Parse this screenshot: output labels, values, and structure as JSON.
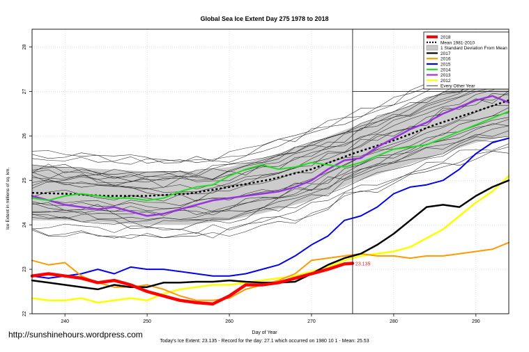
{
  "page": {
    "watermark": "http://sunshinehours.wordpress.com"
  },
  "chart_data": {
    "type": "line",
    "title": "Global Sea Ice Extent Day 275 1978 to 2018",
    "xlabel": "Day of Year",
    "ylabel": "Ice Extent in millions of sq. km.",
    "footer": "Today's Ice Extent: 23.135  - Record for the day: 27.1 which occurred on 1980 10 1  - Mean: 25.53",
    "xlim": [
      236,
      294
    ],
    "ylim": [
      22,
      28.4
    ],
    "x_ticks": [
      240,
      250,
      260,
      270,
      280,
      290
    ],
    "y_ticks": [
      22,
      23,
      24,
      25,
      26,
      27,
      28
    ],
    "grid": true,
    "legend_position": "top-right",
    "vertical_marker_x": 275,
    "reference_line_y": 27,
    "end_label": {
      "x": 275,
      "y": 23.135,
      "text": "23.135",
      "color": "#e8211d"
    },
    "legend": [
      {
        "label": "2018",
        "color": "#ff0000",
        "style": "thick"
      },
      {
        "label": "Mean 1981-2010",
        "color": "#000000",
        "style": "dotted"
      },
      {
        "label": "1 Standard Deviation From Mean",
        "color": "#c8c8c8",
        "style": "box"
      },
      {
        "label": "2017",
        "color": "#000000",
        "style": "solid"
      },
      {
        "label": "2016",
        "color": "#ff9a00",
        "style": "solid"
      },
      {
        "label": "2015",
        "color": "#0000ee",
        "style": "solid"
      },
      {
        "label": "2014",
        "color": "#22dd22",
        "style": "solid"
      },
      {
        "label": "2013",
        "color": "#9933dd",
        "style": "solid"
      },
      {
        "label": "2012",
        "color": "#ffff00",
        "style": "solid"
      },
      {
        "label": "Every Other Year",
        "color": "#000000",
        "style": "thin"
      }
    ],
    "band": {
      "x": [
        236,
        240,
        245,
        250,
        255,
        260,
        265,
        270,
        275,
        280,
        285,
        290,
        294
      ],
      "lower": [
        24.1,
        24.1,
        24.05,
        24.0,
        24.0,
        24.1,
        24.3,
        24.55,
        24.95,
        25.25,
        25.55,
        25.85,
        26.0
      ],
      "upper": [
        25.35,
        25.3,
        25.25,
        25.2,
        25.2,
        25.3,
        25.55,
        25.85,
        26.2,
        26.55,
        26.9,
        27.25,
        27.45
      ]
    },
    "mean": {
      "name": "Mean 1981-2010",
      "x": [
        236,
        240,
        245,
        250,
        255,
        260,
        265,
        270,
        275,
        280,
        285,
        290,
        294
      ],
      "y": [
        24.72,
        24.7,
        24.65,
        24.65,
        24.7,
        24.85,
        25.02,
        25.25,
        25.6,
        25.9,
        26.25,
        26.55,
        26.8
      ]
    },
    "series": [
      {
        "name": "2018",
        "color": "#ff0000",
        "width": 4.5,
        "x": [
          236,
          238,
          240,
          242,
          244,
          246,
          248,
          250,
          252,
          254,
          256,
          258,
          260,
          262,
          264,
          266,
          268,
          270,
          272,
          274,
          275
        ],
        "y": [
          22.85,
          22.9,
          22.85,
          22.8,
          22.7,
          22.75,
          22.65,
          22.5,
          22.4,
          22.3,
          22.25,
          22.22,
          22.4,
          22.65,
          22.65,
          22.7,
          22.8,
          22.9,
          23.0,
          23.12,
          23.135
        ]
      },
      {
        "name": "2017",
        "color": "#000000",
        "width": 2.5,
        "x": [
          236,
          238,
          240,
          242,
          244,
          246,
          248,
          250,
          252,
          254,
          256,
          258,
          260,
          262,
          264,
          266,
          268,
          270,
          272,
          274,
          276,
          278,
          280,
          282,
          284,
          286,
          288,
          290,
          292,
          294
        ],
        "y": [
          22.75,
          22.7,
          22.65,
          22.6,
          22.55,
          22.65,
          22.6,
          22.6,
          22.7,
          22.7,
          22.72,
          22.72,
          22.75,
          22.72,
          22.7,
          22.7,
          22.72,
          22.9,
          23.1,
          23.25,
          23.35,
          23.55,
          23.8,
          24.1,
          24.4,
          24.45,
          24.4,
          24.65,
          24.85,
          25.0
        ]
      },
      {
        "name": "2016",
        "color": "#ff9a00",
        "width": 2,
        "x": [
          236,
          238,
          240,
          242,
          244,
          246,
          248,
          250,
          252,
          254,
          256,
          258,
          260,
          262,
          264,
          266,
          268,
          270,
          272,
          274,
          276,
          278,
          280,
          282,
          284,
          286,
          288,
          290,
          292,
          294
        ],
        "y": [
          23.2,
          23.1,
          23.15,
          22.85,
          22.7,
          22.6,
          22.6,
          22.65,
          22.55,
          22.4,
          22.3,
          22.3,
          22.35,
          22.55,
          22.65,
          22.75,
          22.9,
          23.2,
          23.25,
          23.3,
          23.35,
          23.3,
          23.3,
          23.25,
          23.3,
          23.3,
          23.35,
          23.4,
          23.45,
          23.6
        ]
      },
      {
        "name": "2015",
        "color": "#0000ee",
        "width": 2,
        "x": [
          236,
          238,
          240,
          242,
          244,
          246,
          248,
          250,
          252,
          254,
          256,
          258,
          260,
          262,
          264,
          266,
          268,
          270,
          272,
          274,
          276,
          278,
          280,
          282,
          284,
          286,
          288,
          290,
          292,
          294
        ],
        "y": [
          22.85,
          22.8,
          22.85,
          22.9,
          23.0,
          22.9,
          23.05,
          23.0,
          23.0,
          22.95,
          22.9,
          22.85,
          22.85,
          22.9,
          23.0,
          23.1,
          23.3,
          23.55,
          23.75,
          24.1,
          24.2,
          24.4,
          24.7,
          24.85,
          24.9,
          25.0,
          25.25,
          25.6,
          25.85,
          25.95
        ]
      },
      {
        "name": "2014",
        "color": "#22dd22",
        "width": 2,
        "x": [
          236,
          238,
          240,
          242,
          244,
          246,
          248,
          250,
          252,
          254,
          256,
          258,
          260,
          262,
          264,
          266,
          268,
          270,
          272,
          274,
          276,
          278,
          280,
          282,
          284,
          286,
          288,
          290,
          292,
          294
        ],
        "y": [
          24.6,
          24.55,
          24.65,
          24.7,
          24.65,
          24.6,
          24.6,
          24.55,
          24.6,
          24.75,
          24.85,
          24.9,
          25.1,
          25.25,
          25.35,
          25.25,
          25.3,
          25.4,
          25.35,
          25.3,
          25.4,
          25.55,
          25.7,
          25.75,
          25.8,
          25.95,
          26.1,
          26.25,
          26.4,
          26.55
        ]
      },
      {
        "name": "2013",
        "color": "#9933dd",
        "width": 2.5,
        "x": [
          236,
          238,
          240,
          242,
          244,
          246,
          248,
          250,
          252,
          254,
          256,
          258,
          260,
          262,
          264,
          266,
          268,
          270,
          272,
          274,
          276,
          278,
          280,
          282,
          284,
          286,
          288,
          290,
          292,
          294
        ],
        "y": [
          24.65,
          24.55,
          24.45,
          24.4,
          24.35,
          24.4,
          24.3,
          24.2,
          24.25,
          24.35,
          24.45,
          24.55,
          24.6,
          24.65,
          24.7,
          24.75,
          24.85,
          25.0,
          25.25,
          25.45,
          25.5,
          25.75,
          25.95,
          26.15,
          26.3,
          26.5,
          26.65,
          26.8,
          26.9,
          26.75
        ]
      },
      {
        "name": "2012",
        "color": "#ffff00",
        "width": 2.5,
        "x": [
          236,
          238,
          240,
          242,
          244,
          246,
          248,
          250,
          252,
          254,
          256,
          258,
          260,
          262,
          264,
          266,
          268,
          270,
          272,
          274,
          276,
          278,
          280,
          282,
          284,
          286,
          288,
          290,
          292,
          294
        ],
        "y": [
          22.35,
          22.3,
          22.3,
          22.35,
          22.25,
          22.3,
          22.35,
          22.3,
          22.45,
          22.55,
          22.6,
          22.65,
          22.65,
          22.7,
          22.75,
          22.8,
          22.85,
          22.95,
          23.05,
          23.2,
          23.3,
          23.35,
          23.4,
          23.5,
          23.7,
          23.9,
          24.2,
          24.5,
          24.75,
          25.1
        ]
      }
    ]
  }
}
